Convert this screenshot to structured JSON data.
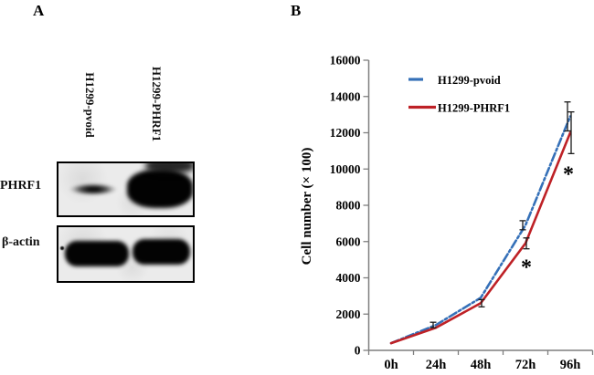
{
  "figure": {
    "panel_a": {
      "label": "A",
      "lanes": [
        "H1299-pvoid",
        "H1299-PHRF1"
      ],
      "blots": [
        {
          "protein": "PHRF1",
          "bands": [
            {
              "lane": "H1299-pvoid",
              "intensity": "weak"
            },
            {
              "lane": "H1299-PHRF1",
              "intensity": "strong"
            }
          ]
        },
        {
          "protein": "β-actin",
          "bands": [
            {
              "lane": "H1299-pvoid",
              "intensity": "strong"
            },
            {
              "lane": "H1299-PHRF1",
              "intensity": "strong"
            }
          ]
        }
      ]
    },
    "panel_b": {
      "label": "B",
      "chart_data": {
        "type": "line",
        "categories": [
          "0h",
          "24h",
          "48h",
          "72h",
          "96h"
        ],
        "series": [
          {
            "name": "H1299-pvoid",
            "color": "#3570b8",
            "style": "dash-dot",
            "values": [
              400,
              1400,
              2900,
              6900,
              12900
            ],
            "errors": [
              null,
              150,
              null,
              250,
              800
            ]
          },
          {
            "name": "H1299-PHRF1",
            "color": "#be2126",
            "style": "solid",
            "values": [
              400,
              1250,
              2600,
              5900,
              12000
            ],
            "errors": [
              null,
              null,
              200,
              300,
              1150
            ]
          }
        ],
        "xlabel": "",
        "ylabel": "Cell number (× 100)",
        "ylim": [
          0,
          16000
        ],
        "ytick_step": 2000,
        "yticks": [
          0,
          2000,
          4000,
          6000,
          8000,
          10000,
          12000,
          14000,
          16000
        ],
        "grid": false,
        "legend_position": "inside-top-left",
        "error_bar_color": "#1a1a1a",
        "axis_color": "#7f7f7f",
        "annotations": [
          {
            "text": "*",
            "category_index": 3,
            "value": 4900,
            "dx": 1
          },
          {
            "text": "*",
            "category_index": 4,
            "value": 10050,
            "dx": -2
          }
        ]
      }
    }
  }
}
